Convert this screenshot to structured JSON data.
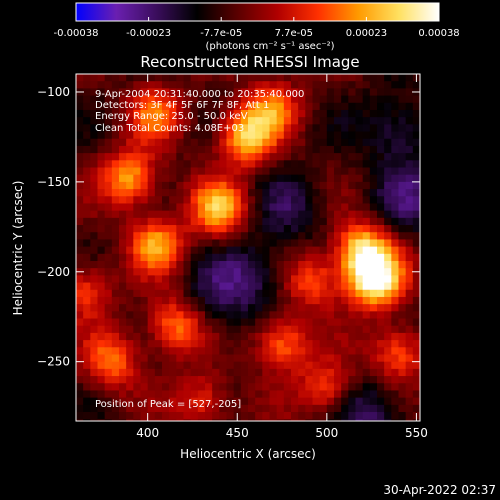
{
  "chart_data": {
    "type": "heatmap",
    "title": "Reconstructed RHESSI Image",
    "xlabel": "Heliocentric X (arcsec)",
    "ylabel": "Heliocentric Y (arcsec)",
    "xlim": [
      360,
      552
    ],
    "ylim": [
      -283,
      -90
    ],
    "x_ticks": [
      "400",
      "450",
      "500",
      "550"
    ],
    "y_ticks": [
      "-100",
      "-150",
      "-200",
      "-250"
    ],
    "colorbar": {
      "range": [
        -0.00038,
        0.00038
      ],
      "tick_labels": [
        "-0.00038",
        "-0.00023",
        "-7.7e-05",
        "7.7e-05",
        "0.00023",
        "0.00038"
      ],
      "unit_label": "(photons cm⁻² s⁻¹ asec⁻²)",
      "colormap": [
        "#0000ff",
        "#6a1fb0",
        "#3a0d5c",
        "#000000",
        "#5a0000",
        "#b00000",
        "#ff3000",
        "#ff9a00",
        "#ffe060",
        "#ffffff"
      ]
    },
    "annotations": [
      "9-Apr-2004 20:31:40.000 to 20:35:40.000",
      "Detectors: 3F 4F 5F 6F 7F 8F, Att 1",
      "Energy Range: 25.0 - 50.0 keV",
      "Clean    Total Counts: 4.08E+03"
    ],
    "peak_label": "Position of Peak = [527,-205]",
    "peak": {
      "x": 527,
      "y": -205
    },
    "bright_sources": [
      {
        "x": 527,
        "y": -205,
        "strength": 1.0
      },
      {
        "x": 520,
        "y": -188,
        "strength": 0.85
      },
      {
        "x": 455,
        "y": -125,
        "strength": 0.8
      },
      {
        "x": 440,
        "y": -165,
        "strength": 0.75
      },
      {
        "x": 390,
        "y": -148,
        "strength": 0.7
      },
      {
        "x": 405,
        "y": -185,
        "strength": 0.65
      },
      {
        "x": 415,
        "y": -230,
        "strength": 0.6
      },
      {
        "x": 475,
        "y": -240,
        "strength": 0.6
      },
      {
        "x": 492,
        "y": -205,
        "strength": 0.5
      },
      {
        "x": 540,
        "y": -245,
        "strength": 0.55
      },
      {
        "x": 380,
        "y": -250,
        "strength": 0.55
      },
      {
        "x": 500,
        "y": -265,
        "strength": 0.5
      },
      {
        "x": 365,
        "y": -210,
        "strength": 0.45
      },
      {
        "x": 470,
        "y": -108,
        "strength": 0.5
      },
      {
        "x": 430,
        "y": -272,
        "strength": 0.45
      },
      {
        "x": 405,
        "y": -112,
        "strength": 0.5
      }
    ],
    "dark_regions": [
      {
        "x": 460,
        "y": -200,
        "strength": 0.5
      },
      {
        "x": 540,
        "y": -120,
        "strength": 0.55
      },
      {
        "x": 480,
        "y": -165,
        "strength": 0.4
      },
      {
        "x": 440,
        "y": -215,
        "strength": 0.45
      },
      {
        "x": 525,
        "y": -280,
        "strength": 0.6
      },
      {
        "x": 545,
        "y": -160,
        "strength": 0.5
      }
    ]
  },
  "timestamp": "30-Apr-2022 02:37"
}
